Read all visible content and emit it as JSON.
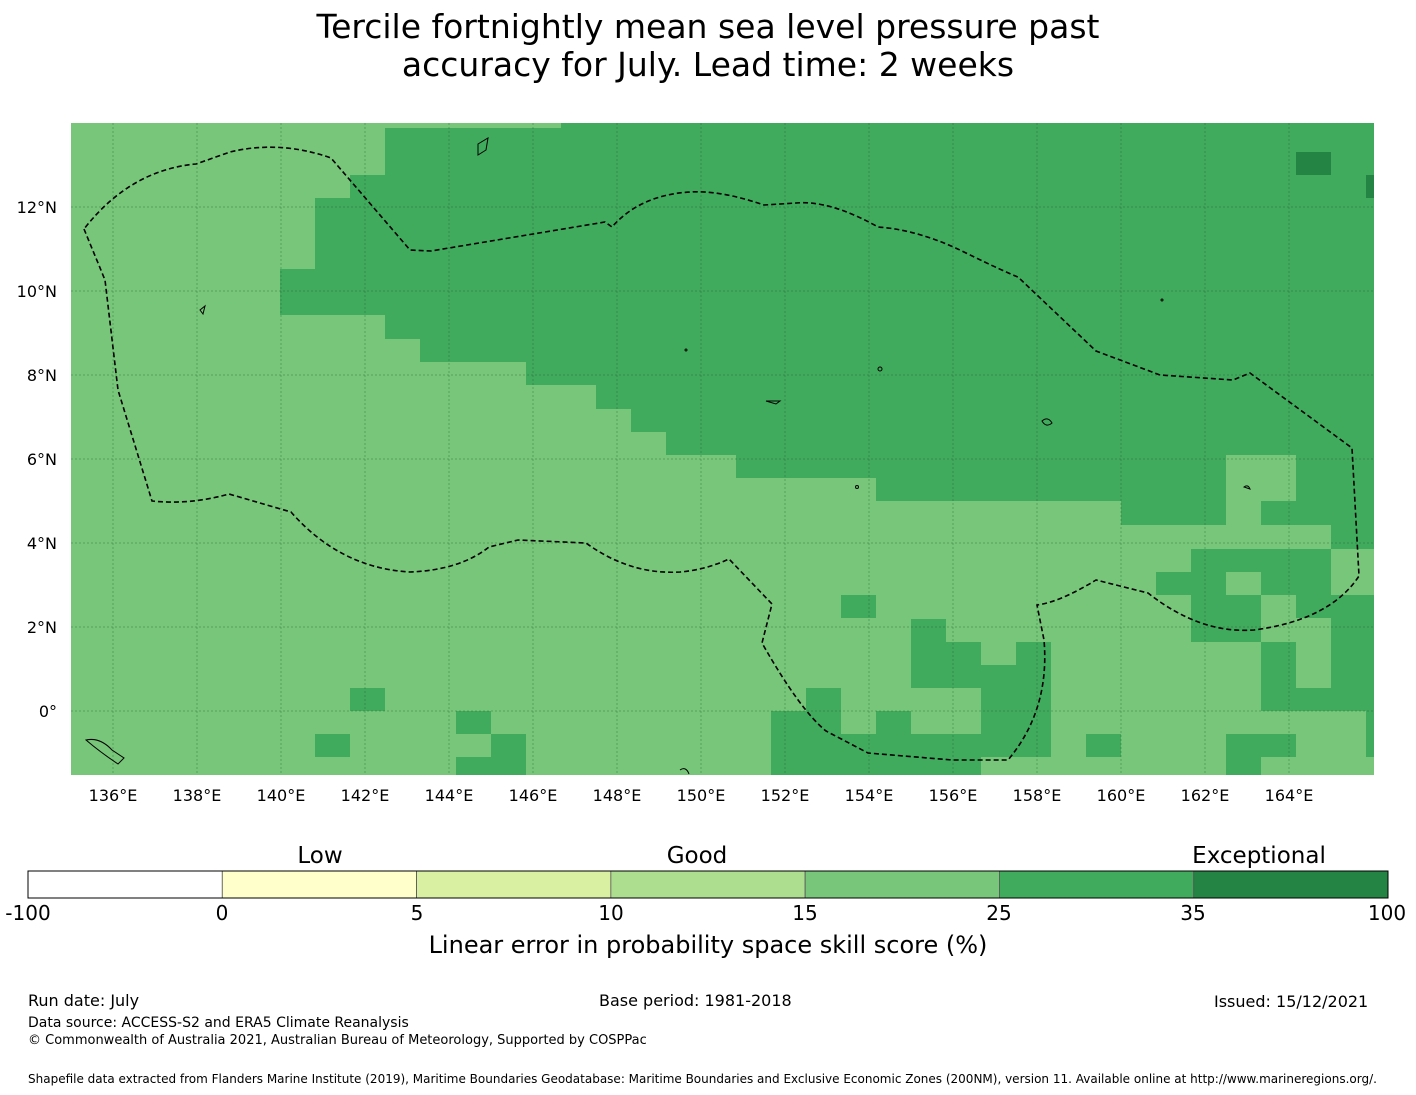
{
  "title": {
    "line1": "Tercile fortnightly mean sea level pressure past",
    "line2": "accuracy for July. Lead time: 2 weeks"
  },
  "map": {
    "lon_labels": [
      "136°E",
      "138°E",
      "140°E",
      "142°E",
      "144°E",
      "146°E",
      "148°E",
      "150°E",
      "152°E",
      "154°E",
      "156°E",
      "158°E",
      "160°E",
      "162°E",
      "164°E"
    ],
    "lat_labels": [
      "12°N",
      "10°N",
      "8°N",
      "6°N",
      "4°N",
      "2°N",
      "0°"
    ],
    "colors": {
      "15_25": "#78c679",
      "25_35": "#41ab5d",
      "35_100": "#238443",
      "eez_line": "#000000",
      "coast": "#000000"
    }
  },
  "colorbar": {
    "categories": [
      "Low",
      "Good",
      "Exceptional"
    ],
    "ticks": [
      "-100",
      "0",
      "5",
      "10",
      "15",
      "25",
      "35",
      "100"
    ],
    "colors": [
      "#ffffff",
      "#ffffcc",
      "#d9f0a3",
      "#addd8e",
      "#78c679",
      "#41ab5d",
      "#238443"
    ],
    "label": "Linear error in probability space skill score (%)"
  },
  "footer": {
    "run_date": "Run date: July",
    "base_period": "Base period: 1981-2018",
    "issued": "Issued: 15/12/2021",
    "data_source": "Data source: ACCESS-S2 and ERA5 Climate Reanalysis",
    "copyright": "© Commonwealth of Australia 2021, Australian Bureau of Meteorology, Supported by COSPPac",
    "shapefile": "Shapefile data extracted from Flanders Marine Institute (2019), Maritime Boundaries Geodatabase: Maritime Boundaries and Exclusive Economic Zones (200NM), version 11. Available online at http://www.marineregions.org/."
  }
}
